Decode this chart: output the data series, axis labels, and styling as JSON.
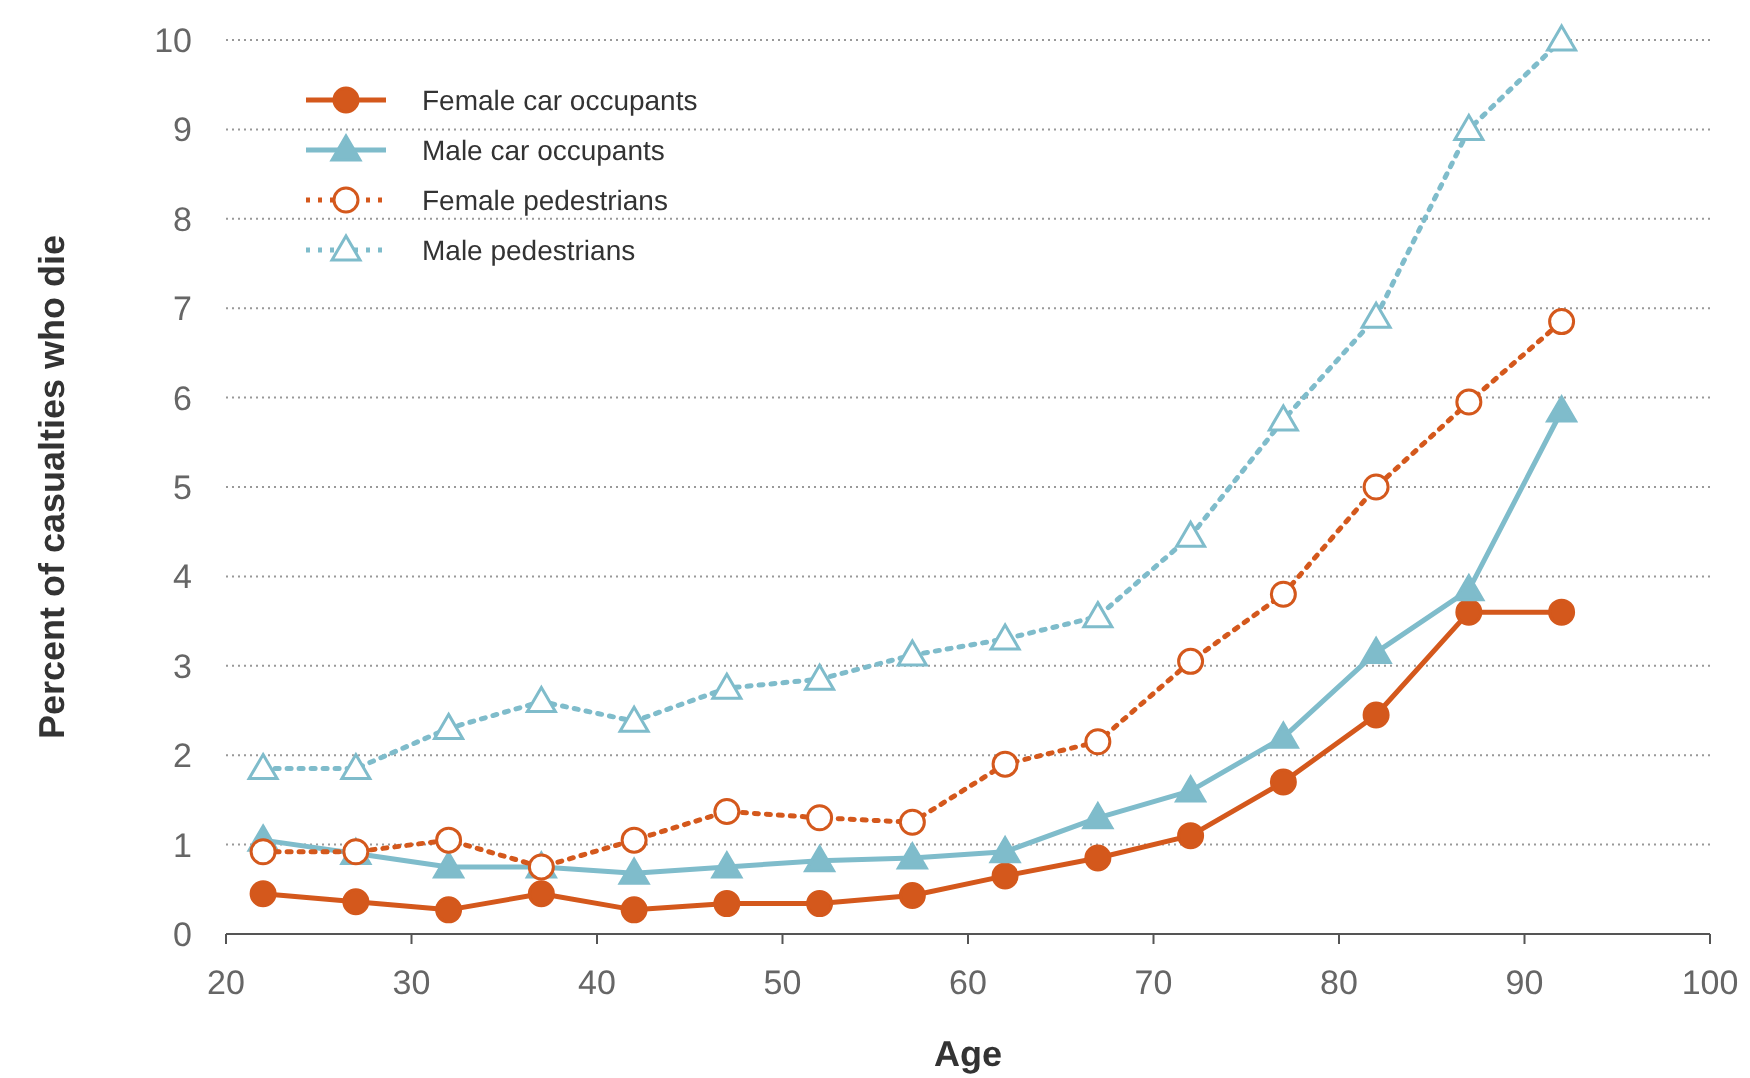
{
  "chart_data": {
    "type": "line",
    "xlabel": "Age",
    "ylabel": "Percent of casualties who die",
    "x": [
      22,
      27,
      32,
      37,
      42,
      47,
      52,
      57,
      62,
      67,
      72,
      77,
      82,
      87,
      92
    ],
    "xlim": [
      20,
      100
    ],
    "xticks": [
      20,
      30,
      40,
      50,
      60,
      70,
      80,
      90,
      100
    ],
    "ylim": [
      0,
      10
    ],
    "yticks": [
      0,
      1,
      2,
      3,
      4,
      5,
      6,
      7,
      8,
      9,
      10
    ],
    "grid": "y",
    "legend": "top left",
    "series": [
      {
        "name": "Female car occupants",
        "color": "#d4581c",
        "marker": "circle",
        "line_style": "solid",
        "values": [
          0.45,
          0.36,
          0.27,
          0.45,
          0.27,
          0.34,
          0.34,
          0.43,
          0.65,
          0.85,
          1.1,
          1.7,
          2.45,
          3.6,
          3.6
        ]
      },
      {
        "name": "Male car occupants",
        "color": "#7fbccb",
        "marker": "triangle",
        "line_style": "solid",
        "values": [
          1.05,
          0.9,
          0.75,
          0.75,
          0.68,
          0.75,
          0.82,
          0.85,
          0.92,
          1.3,
          1.6,
          2.2,
          3.15,
          3.85,
          5.85
        ]
      },
      {
        "name": "Female pedestrians",
        "color": "#d4581c",
        "marker": "circle",
        "line_style": "dotted",
        "values": [
          0.92,
          0.92,
          1.05,
          0.75,
          1.05,
          1.37,
          1.3,
          1.25,
          1.9,
          2.15,
          3.05,
          3.8,
          5.0,
          5.95,
          6.85
        ]
      },
      {
        "name": "Male pedestrians",
        "color": "#7fbccb",
        "marker": "triangle",
        "line_style": "dotted",
        "values": [
          1.85,
          1.85,
          2.3,
          2.6,
          2.38,
          2.75,
          2.85,
          3.12,
          3.3,
          3.55,
          4.45,
          5.75,
          6.9,
          9.0,
          10.0
        ]
      }
    ]
  }
}
